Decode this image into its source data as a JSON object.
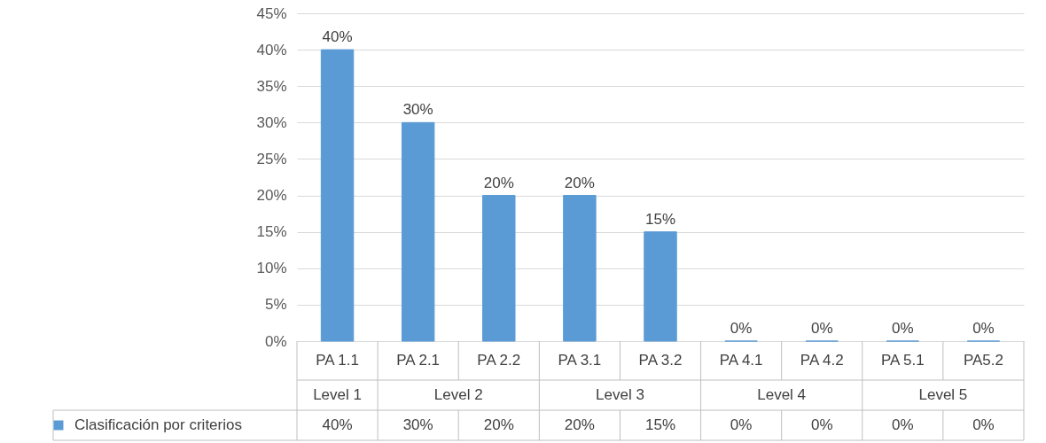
{
  "chart_data": {
    "type": "bar",
    "categories": [
      "PA 1.1",
      "PA 2.1",
      "PA 2.2",
      "PA 3.1",
      "PA 3.2",
      "PA 4.1",
      "PA 4.2",
      "PA 5.1",
      "PA5.2"
    ],
    "series": [
      {
        "name": "Clasificación por criterios",
        "color": "#5b9bd5",
        "values": [
          40,
          30,
          20,
          20,
          15,
          0,
          0,
          0,
          0
        ],
        "value_labels": [
          "40%",
          "30%",
          "20%",
          "20%",
          "15%",
          "0%",
          "0%",
          "0%",
          "0%"
        ]
      }
    ],
    "annotations": [
      "Level 1",
      "Level 2",
      "Level 3",
      "Level 4",
      "Level 5"
    ],
    "ylim": [
      0,
      45
    ],
    "yticks": [
      {
        "value": 0,
        "label": "0%"
      },
      {
        "value": 5,
        "label": "5%"
      },
      {
        "value": 10,
        "label": "10%"
      },
      {
        "value": 15,
        "label": "15%"
      },
      {
        "value": 20,
        "label": "20%"
      },
      {
        "value": 25,
        "label": "25%"
      },
      {
        "value": 30,
        "label": "30%"
      },
      {
        "value": 35,
        "label": "35%"
      },
      {
        "value": 40,
        "label": "40%"
      },
      {
        "value": 45,
        "label": "45%"
      }
    ],
    "grid": "y",
    "legend": "bottom",
    "data_labels": true
  }
}
